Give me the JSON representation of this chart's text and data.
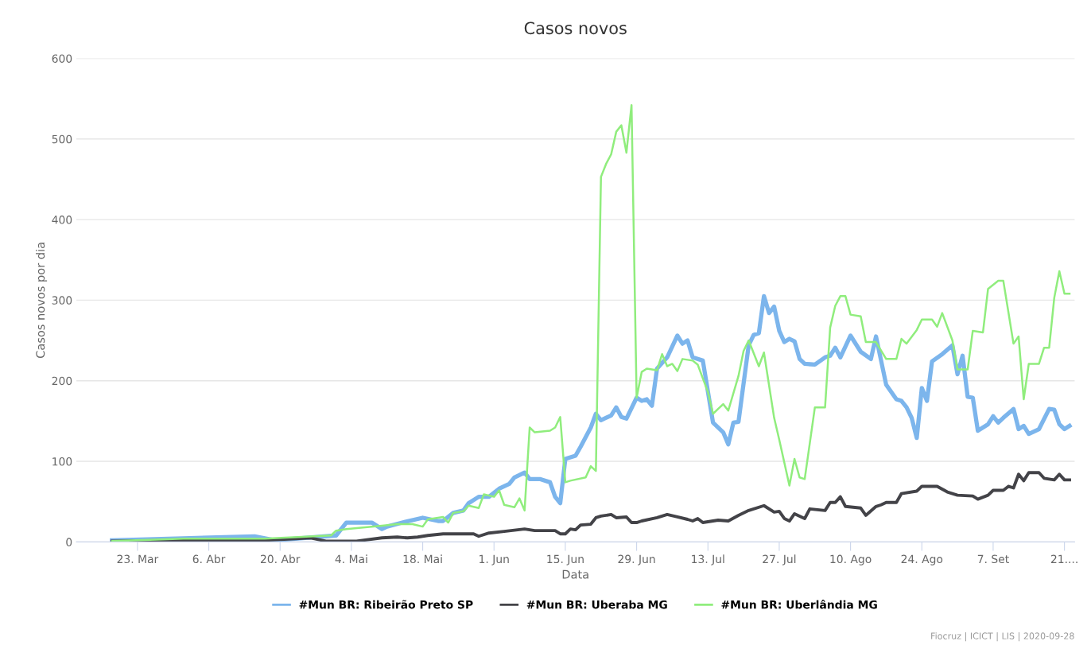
{
  "chart_data": {
    "type": "line",
    "title": "Casos novos",
    "xlabel": "Data",
    "ylabel": "Casos novos por dia",
    "annotations": [
      "Fiocruz | ICICT | LIS | 2020-09-28"
    ],
    "xlim": [
      "2020-03-11",
      "2020-09-23"
    ],
    "xticks": [
      {
        "value": "2020-03-23",
        "label": "23. Mar"
      },
      {
        "value": "2020-04-06",
        "label": "6. Abr"
      },
      {
        "value": "2020-04-20",
        "label": "20. Abr"
      },
      {
        "value": "2020-05-04",
        "label": "4. Mai"
      },
      {
        "value": "2020-05-18",
        "label": "18. Mai"
      },
      {
        "value": "2020-06-01",
        "label": "1. Jun"
      },
      {
        "value": "2020-06-15",
        "label": "15. Jun"
      },
      {
        "value": "2020-06-29",
        "label": "29. Jun"
      },
      {
        "value": "2020-07-13",
        "label": "13. Jul"
      },
      {
        "value": "2020-07-27",
        "label": "27. Jul"
      },
      {
        "value": "2020-08-10",
        "label": "10. Ago"
      },
      {
        "value": "2020-08-24",
        "label": "24. Ago"
      },
      {
        "value": "2020-09-07",
        "label": "7. Set"
      },
      {
        "value": "2020-09-21",
        "label": "21...."
      }
    ],
    "ylim": [
      0,
      600
    ],
    "yticks": [
      0,
      100,
      200,
      300,
      400,
      500,
      600
    ],
    "grid": "y",
    "legend": "bottom",
    "marker": "none",
    "line_style": "solid",
    "series": [
      {
        "name": "#Mun BR: Ribeirão Preto SP",
        "color": "#7cb5ec",
        "x": [
          "2020-03-18",
          "2020-04-15",
          "2020-04-19",
          "2020-05-01",
          "2020-05-03",
          "2020-05-08",
          "2020-05-10",
          "2020-05-11",
          "2020-05-14",
          "2020-05-18",
          "2020-05-21",
          "2020-05-22",
          "2020-05-24",
          "2020-05-26",
          "2020-05-27",
          "2020-05-29",
          "2020-05-31",
          "2020-06-02",
          "2020-06-04",
          "2020-06-05",
          "2020-06-07",
          "2020-06-08",
          "2020-06-10",
          "2020-06-12",
          "2020-06-13",
          "2020-06-14",
          "2020-06-15",
          "2020-06-17",
          "2020-06-18",
          "2020-06-20",
          "2020-06-21",
          "2020-06-22",
          "2020-06-24",
          "2020-06-25",
          "2020-06-26",
          "2020-06-27",
          "2020-06-29",
          "2020-06-30",
          "2020-07-01",
          "2020-07-02",
          "2020-07-03",
          "2020-07-05",
          "2020-07-07",
          "2020-07-08",
          "2020-07-09",
          "2020-07-10",
          "2020-07-12",
          "2020-07-14",
          "2020-07-16",
          "2020-07-17",
          "2020-07-18",
          "2020-07-19",
          "2020-07-21",
          "2020-07-22",
          "2020-07-23",
          "2020-07-24",
          "2020-07-25",
          "2020-07-26",
          "2020-07-27",
          "2020-07-28",
          "2020-07-29",
          "2020-07-30",
          "2020-07-31",
          "2020-08-01",
          "2020-08-03",
          "2020-08-05",
          "2020-08-06",
          "2020-08-07",
          "2020-08-08",
          "2020-08-10",
          "2020-08-12",
          "2020-08-14",
          "2020-08-15",
          "2020-08-17",
          "2020-08-19",
          "2020-08-20",
          "2020-08-21",
          "2020-08-22",
          "2020-08-23",
          "2020-08-24",
          "2020-08-25",
          "2020-08-26",
          "2020-08-28",
          "2020-08-30",
          "2020-08-31",
          "2020-09-01",
          "2020-09-02",
          "2020-09-03",
          "2020-09-04",
          "2020-09-06",
          "2020-09-07",
          "2020-09-08",
          "2020-09-09",
          "2020-09-11",
          "2020-09-12",
          "2020-09-13",
          "2020-09-14",
          "2020-09-16",
          "2020-09-18",
          "2020-09-19",
          "2020-09-20",
          "2020-09-21",
          "2020-09-22"
        ],
        "values": [
          2,
          7,
          2,
          8,
          24,
          24,
          16,
          19,
          24,
          30,
          26,
          26,
          36,
          39,
          48,
          56,
          56,
          66,
          72,
          80,
          86,
          78,
          78,
          74,
          56,
          48,
          103,
          107,
          118,
          142,
          159,
          151,
          157,
          167,
          155,
          153,
          179,
          175,
          177,
          169,
          215,
          229,
          256,
          246,
          250,
          229,
          225,
          148,
          136,
          121,
          148,
          149,
          244,
          257,
          259,
          305,
          284,
          292,
          262,
          248,
          252,
          249,
          227,
          221,
          220,
          229,
          231,
          241,
          229,
          256,
          236,
          227,
          255,
          195,
          177,
          175,
          167,
          154,
          129,
          191,
          175,
          224,
          233,
          244,
          208,
          231,
          180,
          179,
          138,
          146,
          156,
          148,
          154,
          165,
          140,
          144,
          134,
          140,
          165,
          164,
          146,
          140,
          144
        ]
      },
      {
        "name": "#Mun BR: Uberaba MG",
        "color": "#434348",
        "x": [
          "2020-03-18",
          "2020-04-01",
          "2020-04-17",
          "2020-04-26",
          "2020-04-29",
          "2020-05-05",
          "2020-05-10",
          "2020-05-13",
          "2020-05-15",
          "2020-05-17",
          "2020-05-19",
          "2020-05-22",
          "2020-05-28",
          "2020-05-29",
          "2020-05-31",
          "2020-06-03",
          "2020-06-07",
          "2020-06-09",
          "2020-06-13",
          "2020-06-14",
          "2020-06-15",
          "2020-06-16",
          "2020-06-17",
          "2020-06-18",
          "2020-06-20",
          "2020-06-21",
          "2020-06-22",
          "2020-06-24",
          "2020-06-25",
          "2020-06-27",
          "2020-06-28",
          "2020-06-29",
          "2020-06-30",
          "2020-07-03",
          "2020-07-05",
          "2020-07-07",
          "2020-07-09",
          "2020-07-10",
          "2020-07-11",
          "2020-07-12",
          "2020-07-14",
          "2020-07-15",
          "2020-07-17",
          "2020-07-19",
          "2020-07-21",
          "2020-07-24",
          "2020-07-26",
          "2020-07-27",
          "2020-07-28",
          "2020-07-29",
          "2020-07-30",
          "2020-08-01",
          "2020-08-02",
          "2020-08-05",
          "2020-08-06",
          "2020-08-07",
          "2020-08-08",
          "2020-08-09",
          "2020-08-12",
          "2020-08-13",
          "2020-08-15",
          "2020-08-16",
          "2020-08-17",
          "2020-08-19",
          "2020-08-20",
          "2020-08-23",
          "2020-08-24",
          "2020-08-27",
          "2020-08-29",
          "2020-08-31",
          "2020-09-03",
          "2020-09-04",
          "2020-09-06",
          "2020-09-07",
          "2020-09-09",
          "2020-09-10",
          "2020-09-11",
          "2020-09-12",
          "2020-09-13",
          "2020-09-14",
          "2020-09-16",
          "2020-09-17",
          "2020-09-19",
          "2020-09-20",
          "2020-09-21",
          "2020-09-22"
        ],
        "values": [
          1,
          2,
          2,
          5,
          1,
          1,
          5,
          6,
          5,
          6,
          8,
          10,
          10,
          7,
          11,
          13,
          16,
          14,
          14,
          10,
          10,
          16,
          15,
          21,
          22,
          30,
          32,
          34,
          30,
          31,
          24,
          24,
          26,
          30,
          34,
          31,
          28,
          26,
          29,
          24,
          26,
          27,
          26,
          33,
          39,
          45,
          37,
          38,
          29,
          26,
          35,
          29,
          41,
          39,
          49,
          49,
          56,
          44,
          42,
          33,
          44,
          46,
          49,
          49,
          60,
          63,
          69,
          69,
          62,
          58,
          57,
          53,
          58,
          64,
          64,
          69,
          67,
          84,
          76,
          86,
          86,
          79,
          77,
          84,
          77,
          77
        ]
      },
      {
        "name": "#Mun BR: Uberlândia MG",
        "color": "#90ed7d",
        "x": [
          "2020-03-18",
          "2020-04-01",
          "2020-04-17",
          "2020-04-30",
          "2020-05-01",
          "2020-05-03",
          "2020-05-10",
          "2020-05-13",
          "2020-05-16",
          "2020-05-18",
          "2020-05-19",
          "2020-05-22",
          "2020-05-23",
          "2020-05-24",
          "2020-05-26",
          "2020-05-27",
          "2020-05-29",
          "2020-05-30",
          "2020-06-01",
          "2020-06-02",
          "2020-06-03",
          "2020-06-05",
          "2020-06-06",
          "2020-06-07",
          "2020-06-08",
          "2020-06-09",
          "2020-06-12",
          "2020-06-13",
          "2020-06-14",
          "2020-06-15",
          "2020-06-16",
          "2020-06-19",
          "2020-06-20",
          "2020-06-21",
          "2020-06-22",
          "2020-06-23",
          "2020-06-24",
          "2020-06-25",
          "2020-06-26",
          "2020-06-27",
          "2020-06-28",
          "2020-06-29",
          "2020-06-30",
          "2020-07-01",
          "2020-07-03",
          "2020-07-04",
          "2020-07-05",
          "2020-07-06",
          "2020-07-07",
          "2020-07-08",
          "2020-07-10",
          "2020-07-11",
          "2020-07-13",
          "2020-07-14",
          "2020-07-15",
          "2020-07-16",
          "2020-07-17",
          "2020-07-19",
          "2020-07-20",
          "2020-07-21",
          "2020-07-23",
          "2020-07-24",
          "2020-07-26",
          "2020-07-27",
          "2020-07-29",
          "2020-07-30",
          "2020-07-31",
          "2020-08-01",
          "2020-08-03",
          "2020-08-05",
          "2020-08-06",
          "2020-08-07",
          "2020-08-08",
          "2020-08-09",
          "2020-08-10",
          "2020-08-12",
          "2020-08-13",
          "2020-08-15",
          "2020-08-17",
          "2020-08-19",
          "2020-08-20",
          "2020-08-21",
          "2020-08-23",
          "2020-08-24",
          "2020-08-26",
          "2020-08-27",
          "2020-08-28",
          "2020-08-30",
          "2020-08-31",
          "2020-09-02",
          "2020-09-03",
          "2020-09-05",
          "2020-09-06",
          "2020-09-08",
          "2020-09-09",
          "2020-09-11",
          "2020-09-12",
          "2020-09-13",
          "2020-09-14",
          "2020-09-16",
          "2020-09-17",
          "2020-09-18",
          "2020-09-19",
          "2020-09-20",
          "2020-09-21",
          "2020-09-22"
        ],
        "values": [
          1,
          4,
          4,
          8,
          14,
          16,
          20,
          22,
          22,
          19,
          28,
          31,
          24,
          36,
          38,
          45,
          42,
          59,
          56,
          64,
          46,
          43,
          54,
          39,
          142,
          136,
          138,
          142,
          155,
          74,
          76,
          80,
          94,
          88,
          453,
          469,
          481,
          509,
          517,
          483,
          542,
          179,
          211,
          215,
          213,
          233,
          218,
          221,
          212,
          227,
          225,
          220,
          186,
          159,
          165,
          171,
          163,
          206,
          237,
          250,
          218,
          235,
          154,
          127,
          70,
          103,
          80,
          78,
          167,
          167,
          266,
          293,
          305,
          305,
          282,
          280,
          248,
          248,
          227,
          227,
          252,
          246,
          263,
          276,
          276,
          267,
          284,
          250,
          214,
          214,
          262,
          260,
          314,
          324,
          324,
          246,
          255,
          177,
          221,
          221,
          241,
          241,
          303,
          336,
          308,
          308
        ]
      }
    ]
  }
}
